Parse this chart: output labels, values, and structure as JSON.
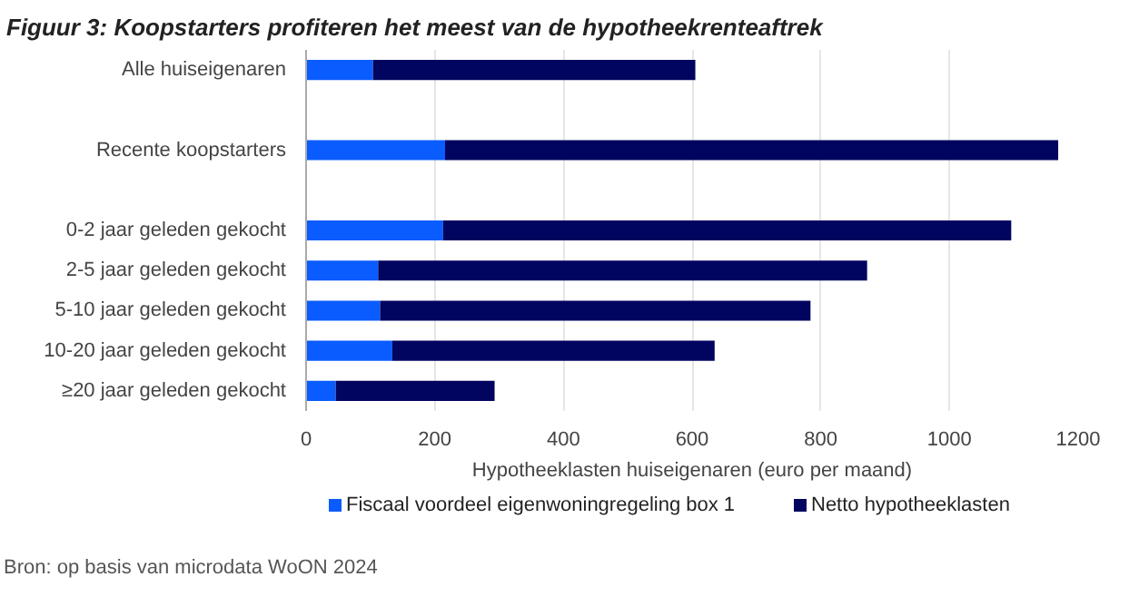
{
  "chart_data": {
    "type": "bar",
    "orientation": "horizontal",
    "stacked": true,
    "title": "Figuur 3: Koopstarters profiteren het meest van de hypotheekrenteaftrek",
    "categories": [
      "Alle huiseigenaren",
      null,
      "Recente koopstarters",
      null,
      "0-2 jaar geleden gekocht",
      "2-5 jaar geleden gekocht",
      "5-10 jaar geleden gekocht",
      "10-20 jaar geleden gekocht",
      "≥20 jaar geleden gekocht"
    ],
    "series": [
      {
        "name": "Fiscaal voordeel eigenwoningregeling box 1",
        "color": "#0a5cff",
        "values": [
          104,
          null,
          216,
          null,
          213,
          112,
          115,
          134,
          46
        ]
      },
      {
        "name": "Netto hypotheeklasten",
        "color": "#020560",
        "values": [
          501,
          null,
          953,
          null,
          883,
          760,
          669,
          501,
          247
        ]
      }
    ],
    "xlabel": "Hypotheeklasten huiseigenaren (euro per maand)",
    "xlim": [
      0,
      1200
    ],
    "xticks": [
      0,
      200,
      400,
      600,
      800,
      1000,
      1200
    ],
    "grid": "x",
    "legend": "bottom",
    "annotations": [
      "Bron: op basis van microdata WoON 2024"
    ]
  }
}
